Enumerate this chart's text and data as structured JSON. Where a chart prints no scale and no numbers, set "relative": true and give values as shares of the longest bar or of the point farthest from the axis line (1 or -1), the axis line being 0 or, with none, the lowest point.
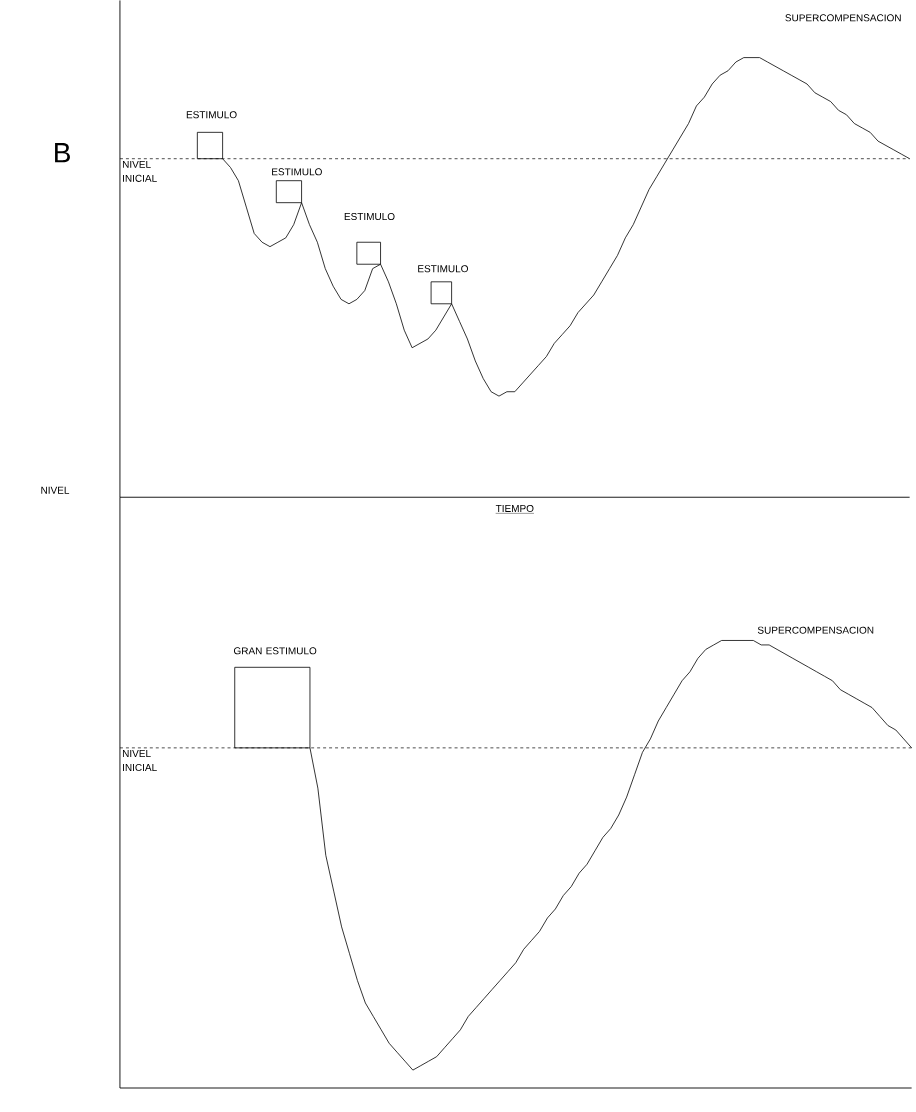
{
  "chart_data": [
    {
      "type": "line",
      "relative": true,
      "tick_labels": false,
      "marker": "none",
      "line_style": "solid",
      "xlabel": "TIEMPO",
      "ylabel": "NIVEL",
      "categories": [
        null,
        null,
        null,
        null,
        null,
        null,
        null,
        null,
        null,
        null,
        null,
        null,
        null,
        null,
        null,
        null,
        null,
        null,
        null,
        null,
        null,
        null,
        null,
        null,
        null,
        null,
        null,
        null,
        null,
        null,
        null,
        null,
        null,
        null,
        null,
        null,
        null,
        null,
        null,
        null,
        null,
        null,
        null,
        null,
        null,
        null,
        null,
        null,
        null,
        null,
        null,
        null,
        null,
        null,
        null,
        null,
        null,
        null,
        null,
        null,
        null,
        null,
        null,
        null,
        null,
        null,
        null,
        null,
        null,
        null,
        null,
        null,
        null,
        null,
        null,
        null,
        null,
        null,
        null,
        null,
        null,
        null,
        null,
        null,
        null,
        null,
        null,
        null,
        null,
        null,
        null,
        null,
        null,
        null,
        null,
        null,
        null,
        null,
        null,
        null,
        null
      ],
      "series": [
        {
          "color": "#000000",
          "values": [
            null,
            null,
            null,
            null,
            null,
            null,
            null,
            null,
            null,
            null,
            null,
            null,
            null,
            0.77,
            0.75,
            0.72,
            0.66,
            0.6,
            0.58,
            0.57,
            0.58,
            0.59,
            0.62,
            0.67,
            0.62,
            0.58,
            0.52,
            0.48,
            0.45,
            0.44,
            0.45,
            0.47,
            0.52,
            0.53,
            0.49,
            0.44,
            0.38,
            0.34,
            0.35,
            0.36,
            0.38,
            0.41,
            0.44,
            0.4,
            0.36,
            0.31,
            0.27,
            0.24,
            0.23,
            0.24,
            0.24,
            0.26,
            0.28,
            0.3,
            0.32,
            0.35,
            0.37,
            0.39,
            0.42,
            0.44,
            0.46,
            0.49,
            0.52,
            0.55,
            0.59,
            0.62,
            0.66,
            0.7,
            0.73,
            0.76,
            0.79,
            0.82,
            0.85,
            0.89,
            0.91,
            0.94,
            0.96,
            0.97,
            0.99,
            1,
            1,
            1,
            0.99,
            0.98,
            0.97,
            0.96,
            0.95,
            0.94,
            0.92,
            0.91,
            0.9,
            0.88,
            0.87,
            0.85,
            0.84,
            0.83,
            0.81,
            0.8,
            0.79,
            0.78,
            0.77
          ]
        }
      ],
      "ref_lines": [
        {
          "axis": "y",
          "value": 0.77,
          "label": "NIVEL INICIAL",
          "line_style": "dashed"
        }
      ],
      "annotations": [
        "B",
        "ESTIMULO",
        "ESTIMULO",
        "ESTIMULO",
        "ESTIMULO",
        "SUPERCOMPENSACION"
      ]
    },
    {
      "type": "line",
      "relative": true,
      "tick_labels": false,
      "marker": "none",
      "line_style": "solid",
      "categories": [
        null,
        null,
        null,
        null,
        null,
        null,
        null,
        null,
        null,
        null,
        null,
        null,
        null,
        null,
        null,
        null,
        null,
        null,
        null,
        null,
        null,
        null,
        null,
        null,
        null,
        null,
        null,
        null,
        null,
        null,
        null,
        null,
        null,
        null,
        null,
        null,
        null,
        null,
        null,
        null,
        null,
        null,
        null,
        null,
        null,
        null,
        null,
        null,
        null,
        null,
        null,
        null,
        null,
        null,
        null,
        null,
        null,
        null,
        null,
        null,
        null,
        null,
        null,
        null,
        null,
        null,
        null,
        null,
        null,
        null,
        null,
        null,
        null,
        null,
        null,
        null,
        null,
        null,
        null,
        null,
        null,
        null,
        null,
        null,
        null,
        null,
        null,
        null,
        null,
        null,
        null,
        null,
        null,
        null,
        null,
        null,
        null,
        null,
        null,
        null,
        null
      ],
      "series": [
        {
          "color": "#000000",
          "values": [
            null,
            null,
            null,
            null,
            null,
            null,
            null,
            null,
            null,
            null,
            null,
            null,
            null,
            null,
            null,
            null,
            null,
            null,
            null,
            null,
            null,
            null,
            null,
            null,
            0.76,
            0.67,
            0.52,
            0.44,
            0.36,
            0.3,
            0.24,
            0.19,
            0.16,
            0.13,
            0.1,
            0.08,
            0.06,
            0.04,
            0.05,
            0.06,
            0.07,
            0.09,
            0.11,
            0.13,
            0.16,
            0.18,
            0.2,
            0.22,
            0.24,
            0.26,
            0.28,
            0.31,
            0.33,
            0.35,
            0.38,
            0.4,
            0.43,
            0.45,
            0.48,
            0.5,
            0.53,
            0.56,
            0.58,
            0.61,
            0.65,
            0.7,
            0.75,
            0.78,
            0.82,
            0.85,
            0.88,
            0.91,
            0.93,
            0.96,
            0.98,
            0.99,
            1,
            1,
            1,
            1,
            1,
            0.99,
            0.99,
            0.98,
            0.97,
            0.96,
            0.95,
            0.94,
            0.93,
            0.92,
            0.91,
            0.89,
            0.88,
            0.87,
            0.86,
            0.85,
            0.83,
            0.81,
            0.8,
            0.78,
            0.76
          ]
        }
      ],
      "ref_lines": [
        {
          "axis": "y",
          "value": 0.76,
          "label": "NIVEL INICIAL",
          "line_style": "dashed"
        }
      ],
      "annotations": [
        "GRAN ESTIMULO",
        "SUPERCOMPENSACION"
      ]
    }
  ]
}
